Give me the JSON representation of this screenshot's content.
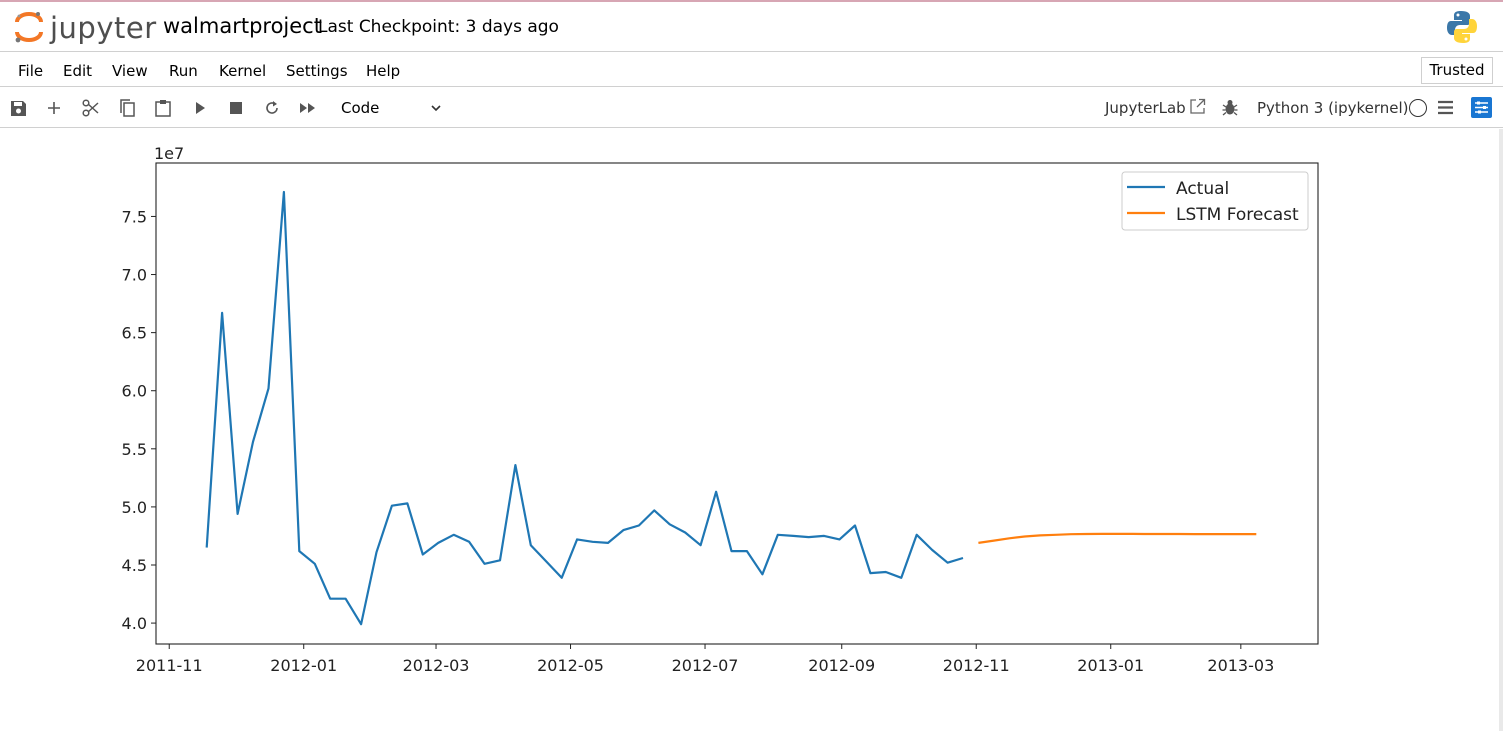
{
  "header": {
    "logo_text": "jupyter",
    "notebook_name": "walmartproject",
    "checkpoint": "Last Checkpoint: 3 days ago"
  },
  "menu": {
    "items": [
      "File",
      "Edit",
      "View",
      "Run",
      "Kernel",
      "Settings",
      "Help"
    ],
    "trusted": "Trusted"
  },
  "toolbar": {
    "icons": [
      "save-icon",
      "add-cell-icon",
      "cut-icon",
      "copy-icon",
      "paste-icon",
      "run-icon",
      "stop-icon",
      "restart-icon",
      "run-all-icon"
    ],
    "cell_type": "Code",
    "jupyterlab": "JupyterLab",
    "kernel": "Python 3 (ipykernel)"
  },
  "colors": {
    "actual": "#1f77b4",
    "forecast": "#ff7f0e",
    "property_icon_bg": "#1976d2",
    "logo_orange": "#f37726"
  },
  "chart_data": {
    "type": "line",
    "title": "",
    "xlabel": "",
    "ylabel": "",
    "y_multiplier_label": "1e7",
    "ylim": [
      3.82,
      7.96
    ],
    "xlim": [
      "2011-10-26",
      "2013-04-05"
    ],
    "y_ticks": [
      4.0,
      4.5,
      5.0,
      5.5,
      6.0,
      6.5,
      7.0,
      7.5
    ],
    "y_tick_labels": [
      "4.0",
      "4.5",
      "5.0",
      "5.5",
      "6.0",
      "6.5",
      "7.0",
      "7.5"
    ],
    "x_ticks": [
      "2011-11-01",
      "2012-01-01",
      "2012-03-01",
      "2012-05-01",
      "2012-07-01",
      "2012-09-01",
      "2012-11-01",
      "2013-01-01",
      "2013-03-01"
    ],
    "x_tick_labels": [
      "2011-11",
      "2012-01",
      "2012-03",
      "2012-05",
      "2012-07",
      "2012-09",
      "2012-11",
      "2013-01",
      "2013-03"
    ],
    "grid": false,
    "legend_position": "top-right",
    "series": [
      {
        "name": "Actual",
        "color": "#1f77b4",
        "points": [
          [
            "2011-11-18",
            4.65
          ],
          [
            "2011-11-25",
            6.67
          ],
          [
            "2011-12-02",
            4.94
          ],
          [
            "2011-12-09",
            5.56
          ],
          [
            "2011-12-16",
            6.02
          ],
          [
            "2011-12-23",
            7.71
          ],
          [
            "2011-12-30",
            4.62
          ],
          [
            "2012-01-06",
            4.51
          ],
          [
            "2012-01-13",
            4.21
          ],
          [
            "2012-01-20",
            4.21
          ],
          [
            "2012-01-27",
            3.99
          ],
          [
            "2012-02-03",
            4.61
          ],
          [
            "2012-02-10",
            5.01
          ],
          [
            "2012-02-17",
            5.03
          ],
          [
            "2012-02-24",
            4.59
          ],
          [
            "2012-03-02",
            4.69
          ],
          [
            "2012-03-09",
            4.76
          ],
          [
            "2012-03-16",
            4.7
          ],
          [
            "2012-03-23",
            4.51
          ],
          [
            "2012-03-30",
            4.54
          ],
          [
            "2012-04-06",
            5.36
          ],
          [
            "2012-04-13",
            4.67
          ],
          [
            "2012-04-20",
            4.53
          ],
          [
            "2012-04-27",
            4.39
          ],
          [
            "2012-05-04",
            4.72
          ],
          [
            "2012-05-11",
            4.7
          ],
          [
            "2012-05-18",
            4.69
          ],
          [
            "2012-05-25",
            4.8
          ],
          [
            "2012-06-01",
            4.84
          ],
          [
            "2012-06-08",
            4.97
          ],
          [
            "2012-06-15",
            4.85
          ],
          [
            "2012-06-22",
            4.78
          ],
          [
            "2012-06-29",
            4.67
          ],
          [
            "2012-07-06",
            5.13
          ],
          [
            "2012-07-13",
            4.62
          ],
          [
            "2012-07-20",
            4.62
          ],
          [
            "2012-07-27",
            4.42
          ],
          [
            "2012-08-03",
            4.76
          ],
          [
            "2012-08-10",
            4.75
          ],
          [
            "2012-08-17",
            4.74
          ],
          [
            "2012-08-24",
            4.75
          ],
          [
            "2012-08-31",
            4.72
          ],
          [
            "2012-09-07",
            4.84
          ],
          [
            "2012-09-14",
            4.43
          ],
          [
            "2012-09-21",
            4.44
          ],
          [
            "2012-09-28",
            4.39
          ],
          [
            "2012-10-05",
            4.76
          ],
          [
            "2012-10-12",
            4.63
          ],
          [
            "2012-10-19",
            4.52
          ],
          [
            "2012-10-26",
            4.56
          ]
        ]
      },
      {
        "name": "LSTM Forecast",
        "color": "#ff7f0e",
        "points": [
          [
            "2012-11-02",
            4.69
          ],
          [
            "2012-11-09",
            4.71
          ],
          [
            "2012-11-16",
            4.73
          ],
          [
            "2012-11-23",
            4.745
          ],
          [
            "2012-11-30",
            4.755
          ],
          [
            "2012-12-07",
            4.76
          ],
          [
            "2012-12-14",
            4.765
          ],
          [
            "2012-12-21",
            4.767
          ],
          [
            "2012-12-28",
            4.768
          ],
          [
            "2013-01-04",
            4.768
          ],
          [
            "2013-01-11",
            4.768
          ],
          [
            "2013-01-18",
            4.767
          ],
          [
            "2013-01-25",
            4.767
          ],
          [
            "2013-02-01",
            4.767
          ],
          [
            "2013-02-08",
            4.766
          ],
          [
            "2013-02-15",
            4.766
          ],
          [
            "2013-02-22",
            4.766
          ],
          [
            "2013-03-01",
            4.766
          ],
          [
            "2013-03-08",
            4.766
          ]
        ]
      }
    ]
  }
}
